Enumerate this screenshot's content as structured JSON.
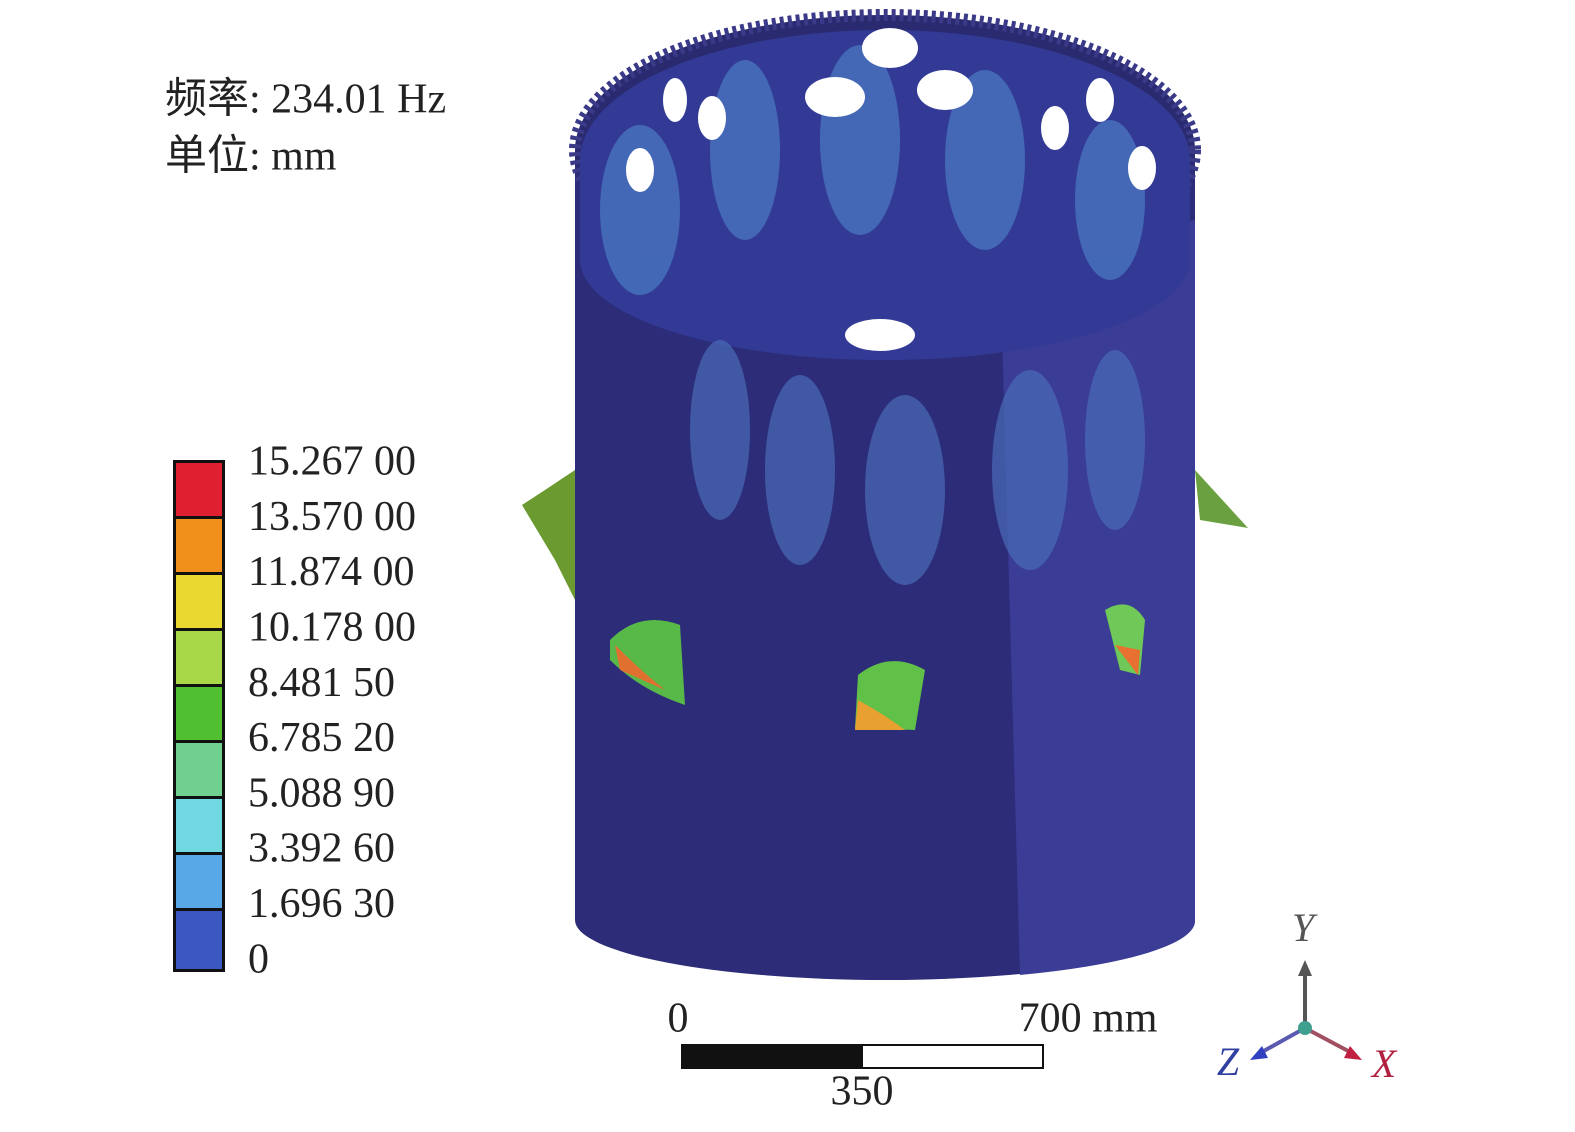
{
  "info": {
    "frequency": "频率: 234.01 Hz",
    "unit": "单位: mm"
  },
  "legend": {
    "labels": [
      "15.267 00",
      "13.570 00",
      "11.874 00",
      "10.178 00",
      "8.481 50",
      "6.785 20",
      "5.088 90",
      "3.392 60",
      "1.696 30",
      "0"
    ]
  },
  "scale_bar": {
    "start": "0",
    "middle": "350",
    "end": "700 mm"
  },
  "axes": {
    "y": "Y",
    "z": "Z",
    "x": "X"
  }
}
